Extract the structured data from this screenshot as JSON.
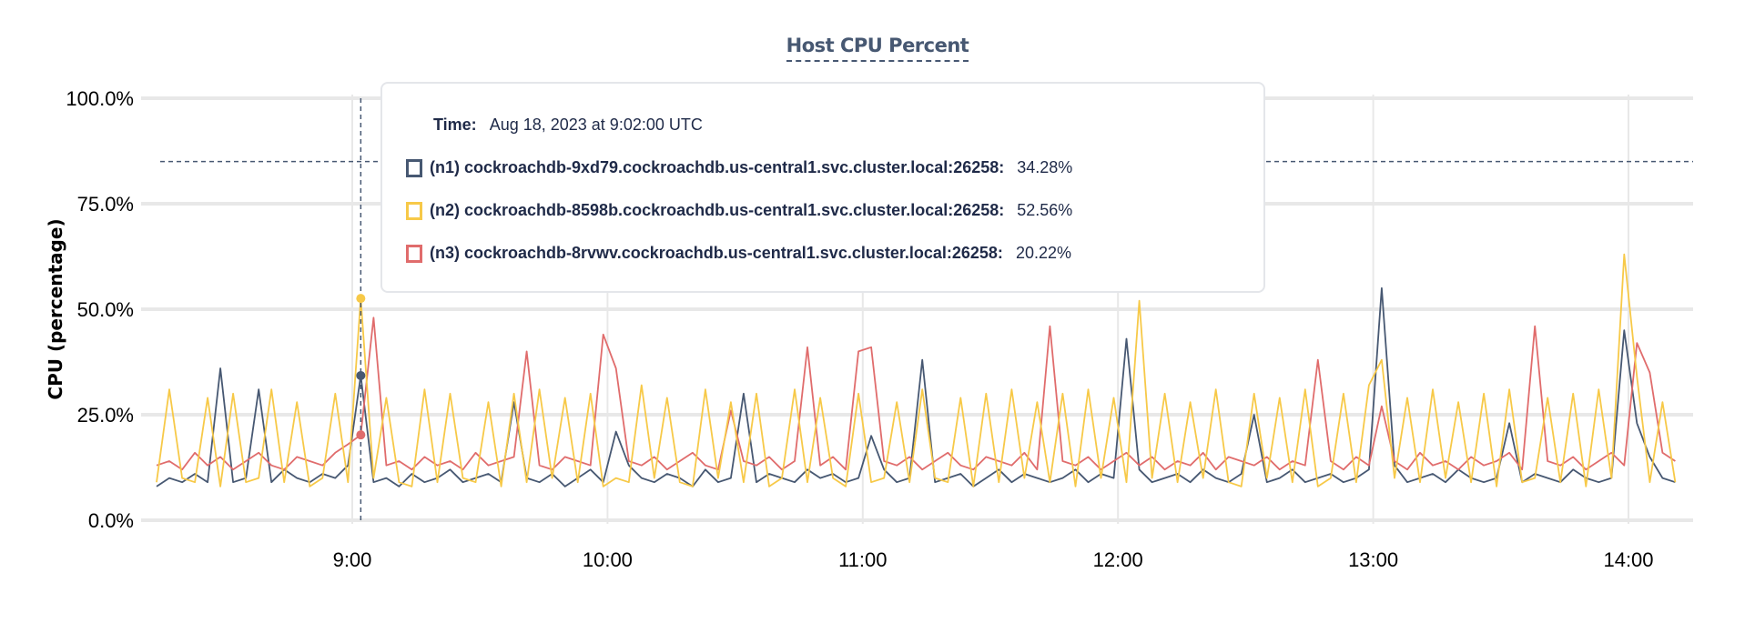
{
  "chart_data": {
    "type": "line",
    "title": "Host CPU Percent",
    "ylabel": "CPU (percentage)",
    "xlabel": "",
    "ylim": [
      0,
      100
    ],
    "yticks": [
      "0.0%",
      "25.0%",
      "50.0%",
      "75.0%",
      "100.0%"
    ],
    "ytick_values": [
      0,
      25,
      50,
      75,
      100
    ],
    "xticks": [
      "9:00",
      "10:00",
      "11:00",
      "12:00",
      "13:00",
      "14:00"
    ],
    "x_start": "08:14",
    "x_step_minutes": 3,
    "threshold": 85,
    "grid": true,
    "series": [
      {
        "name": "(n1) cockroachdb-9xd79.cockroachdb.us-central1.svc.cluster.local:26258",
        "color": "#475872",
        "values": [
          8,
          10,
          9,
          11,
          9,
          36,
          9,
          10,
          31,
          9,
          12,
          10,
          9,
          11,
          10,
          13,
          34.28,
          9,
          10,
          8,
          11,
          9,
          10,
          12,
          9,
          10,
          11,
          9,
          28,
          10,
          9,
          11,
          8,
          10,
          12,
          9,
          21,
          13,
          10,
          9,
          11,
          10,
          8,
          12,
          9,
          10,
          30,
          9,
          11,
          10,
          9,
          12,
          10,
          11,
          9,
          10,
          20,
          12,
          9,
          10,
          38,
          9,
          10,
          11,
          8,
          10,
          12,
          9,
          11,
          10,
          9,
          10,
          12,
          9,
          11,
          10,
          43,
          12,
          9,
          10,
          11,
          9,
          12,
          10,
          9,
          11,
          25,
          9,
          10,
          12,
          9,
          10,
          11,
          9,
          10,
          12,
          55,
          13,
          9,
          10,
          11,
          9,
          12,
          10,
          9,
          10,
          23,
          9,
          11,
          10,
          9,
          12,
          10,
          9,
          10,
          45,
          23,
          15,
          10,
          9
        ]
      },
      {
        "name": "(n2) cockroachdb-8598b.cockroachdb.us-central1.svc.cluster.local:26258",
        "color": "#f7c948",
        "values": [
          9,
          31,
          10,
          9,
          29,
          8,
          30,
          9,
          10,
          31,
          9,
          28,
          8,
          10,
          30,
          9,
          52.56,
          10,
          29,
          9,
          8,
          31,
          9,
          30,
          10,
          9,
          28,
          8,
          30,
          9,
          31,
          10,
          29,
          9,
          30,
          8,
          10,
          9,
          32,
          10,
          29,
          9,
          8,
          31,
          10,
          28,
          9,
          30,
          8,
          10,
          31,
          9,
          29,
          10,
          8,
          30,
          9,
          10,
          28,
          9,
          31,
          10,
          9,
          29,
          8,
          30,
          9,
          31,
          10,
          28,
          9,
          30,
          8,
          31,
          10,
          29,
          9,
          52,
          10,
          30,
          9,
          28,
          10,
          31,
          9,
          8,
          30,
          10,
          29,
          9,
          31,
          8,
          10,
          30,
          9,
          32,
          38,
          10,
          29,
          9,
          31,
          10,
          28,
          9,
          30,
          8,
          31,
          9,
          10,
          29,
          9,
          30,
          8,
          31,
          10,
          63,
          34,
          9,
          28,
          9
        ]
      },
      {
        "name": "(n3) cockroachdb-8rvwv.cockroachdb.us-central1.svc.cluster.local:26258",
        "color": "#e06c6c",
        "values": [
          13,
          14,
          12,
          16,
          13,
          15,
          12,
          14,
          16,
          13,
          12,
          15,
          14,
          13,
          16,
          18,
          20.22,
          48,
          13,
          14,
          12,
          15,
          13,
          14,
          12,
          16,
          13,
          14,
          15,
          40,
          13,
          12,
          15,
          14,
          13,
          44,
          36,
          14,
          13,
          15,
          12,
          14,
          16,
          13,
          12,
          26,
          14,
          13,
          15,
          12,
          14,
          41,
          13,
          15,
          12,
          40,
          41,
          14,
          13,
          15,
          12,
          14,
          16,
          13,
          12,
          15,
          14,
          13,
          16,
          12,
          46,
          14,
          13,
          15,
          12,
          14,
          16,
          13,
          15,
          12,
          14,
          13,
          16,
          12,
          15,
          14,
          13,
          15,
          12,
          14,
          13,
          38,
          14,
          12,
          15,
          13,
          27,
          14,
          12,
          16,
          13,
          14,
          12,
          15,
          13,
          14,
          16,
          12,
          46,
          14,
          13,
          15,
          12,
          14,
          16,
          13,
          42,
          35,
          16,
          14
        ]
      }
    ]
  },
  "tooltip": {
    "time_label": "Time:",
    "time_value": "Aug 18, 2023 at 9:02:00 UTC",
    "hover_index": 16,
    "rows": [
      {
        "name": "(n1) cockroachdb-9xd79.cockroachdb.us-central1.svc.cluster.local:26258:",
        "value": "34.28%",
        "color": "#475872"
      },
      {
        "name": "(n2) cockroachdb-8598b.cockroachdb.us-central1.svc.cluster.local:26258:",
        "value": "52.56%",
        "color": "#f7c948"
      },
      {
        "name": "(n3) cockroachdb-8rvwv.cockroachdb.us-central1.svc.cluster.local:26258:",
        "value": "20.22%",
        "color": "#e06c6c"
      }
    ]
  }
}
